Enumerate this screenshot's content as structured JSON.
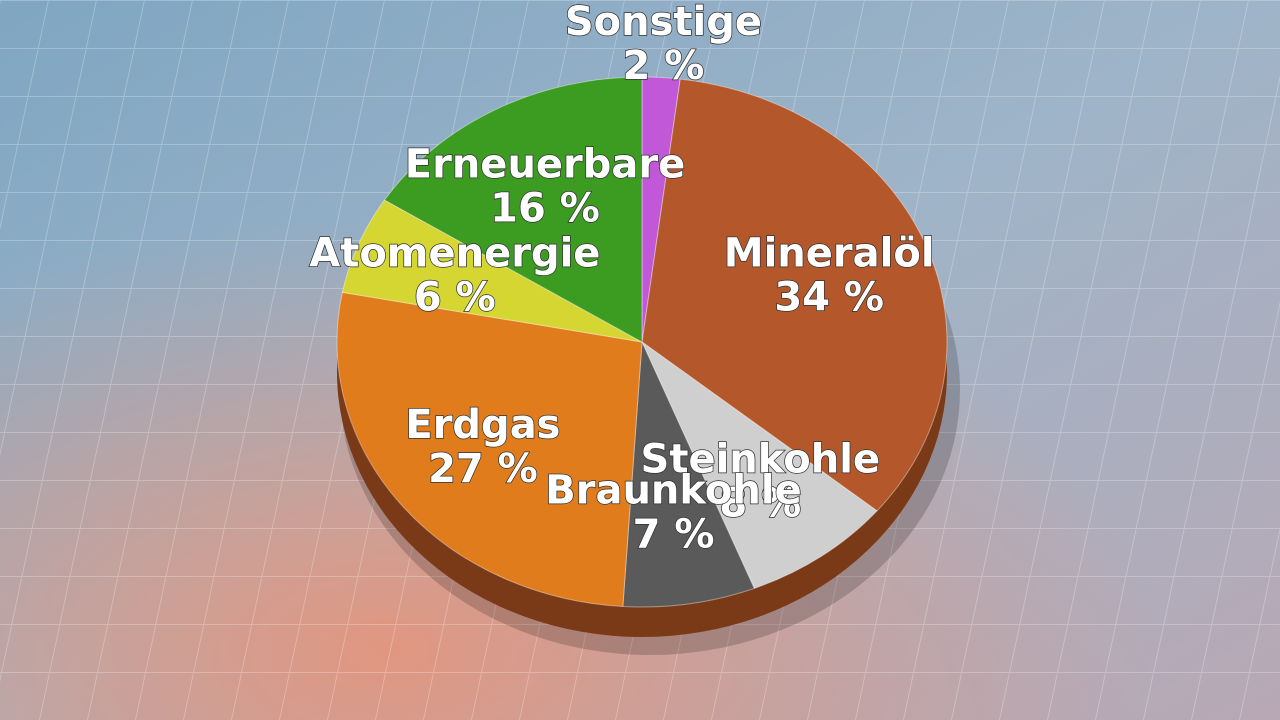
{
  "chart_data": {
    "type": "pie",
    "categories": [
      "Sonstige",
      "Mineralöl",
      "Steinkohle",
      "Braunkohle",
      "Erdgas",
      "Atomenergie",
      "Erneuerbare"
    ],
    "values": [
      2,
      34,
      8,
      7,
      27,
      6,
      16
    ],
    "value_labels": [
      "2 %",
      "34 %",
      "8 %",
      "7 %",
      "27 %",
      "6 %",
      "16 %"
    ],
    "colors": [
      "#c058d8",
      "#b4582c",
      "#cfcfcf",
      "#5a5a5a",
      "#e07c1c",
      "#d6d632",
      "#3c9c22"
    ]
  }
}
